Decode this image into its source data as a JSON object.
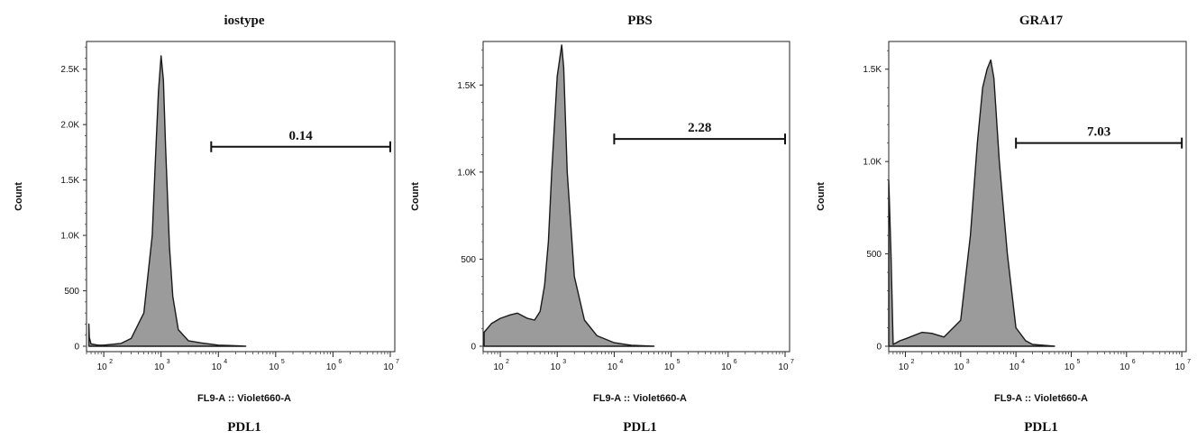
{
  "chart_data": [
    {
      "type": "area",
      "title": "iostype",
      "xlabel": "FL9-A :: Violet660-A",
      "sublabel": "PDL1",
      "ylabel": "Count",
      "xscale": "log",
      "xlim": [
        50,
        12000000
      ],
      "ylim": [
        0,
        2750
      ],
      "yticks": [
        {
          "v": 0,
          "t": "0"
        },
        {
          "v": 500,
          "t": "500"
        },
        {
          "v": 1000,
          "t": "1.0K"
        },
        {
          "v": 1500,
          "t": "1.5K"
        },
        {
          "v": 2000,
          "t": "2.0K"
        },
        {
          "v": 2500,
          "t": "2.5K"
        }
      ],
      "x": [
        55,
        56,
        60,
        80,
        100,
        200,
        300,
        500,
        700,
        800,
        900,
        1000,
        1100,
        1200,
        1400,
        1600,
        2000,
        3000,
        5000,
        10000,
        20000,
        30000
      ],
      "values": [
        200,
        80,
        20,
        10,
        10,
        25,
        70,
        300,
        1000,
        1700,
        2300,
        2620,
        2400,
        1800,
        900,
        450,
        150,
        50,
        30,
        10,
        5,
        0
      ],
      "gate": {
        "label": "0.14",
        "range": [
          7500,
          10000000
        ],
        "y": 1800
      }
    },
    {
      "type": "area",
      "title": "PBS",
      "xlabel": "FL9-A :: Violet660-A",
      "sublabel": "PDL1",
      "ylabel": "Count",
      "xscale": "log",
      "xlim": [
        50,
        12000000
      ],
      "ylim": [
        0,
        1750
      ],
      "yticks": [
        {
          "v": 0,
          "t": "0"
        },
        {
          "v": 500,
          "t": "500"
        },
        {
          "v": 1000,
          "t": "1.0K"
        },
        {
          "v": 1500,
          "t": "1.5K"
        }
      ],
      "x": [
        52,
        70,
        100,
        150,
        200,
        300,
        400,
        500,
        600,
        700,
        800,
        1000,
        1200,
        1300,
        1500,
        2000,
        3000,
        5000,
        10000,
        20000,
        50000
      ],
      "values": [
        80,
        130,
        160,
        180,
        190,
        160,
        150,
        200,
        350,
        600,
        1000,
        1550,
        1730,
        1600,
        1000,
        400,
        150,
        60,
        20,
        5,
        0
      ],
      "gate": {
        "label": "2.28",
        "range": [
          10000,
          10000000
        ],
        "y": 1190
      }
    },
    {
      "type": "area",
      "title": "GRA17",
      "xlabel": "FL9-A :: Violet660-A",
      "sublabel": "PDL1",
      "ylabel": "Count",
      "xscale": "log",
      "xlim": [
        50,
        12000000
      ],
      "ylim": [
        0,
        1650
      ],
      "yticks": [
        {
          "v": 0,
          "t": "0"
        },
        {
          "v": 500,
          "t": "500"
        },
        {
          "v": 1000,
          "t": "1.0K"
        },
        {
          "v": 1500,
          "t": "1.5K"
        }
      ],
      "x": [
        50,
        55,
        60,
        80,
        100,
        200,
        300,
        500,
        1000,
        1500,
        2000,
        2500,
        3000,
        3500,
        4000,
        5000,
        7000,
        10000,
        15000,
        20000,
        50000
      ],
      "values": [
        900,
        500,
        10,
        30,
        40,
        75,
        70,
        50,
        140,
        600,
        1100,
        1400,
        1500,
        1550,
        1450,
        1000,
        500,
        100,
        30,
        10,
        0
      ],
      "gate": {
        "label": "7.03",
        "range": [
          10000,
          10000000
        ],
        "y": 1100
      }
    }
  ]
}
